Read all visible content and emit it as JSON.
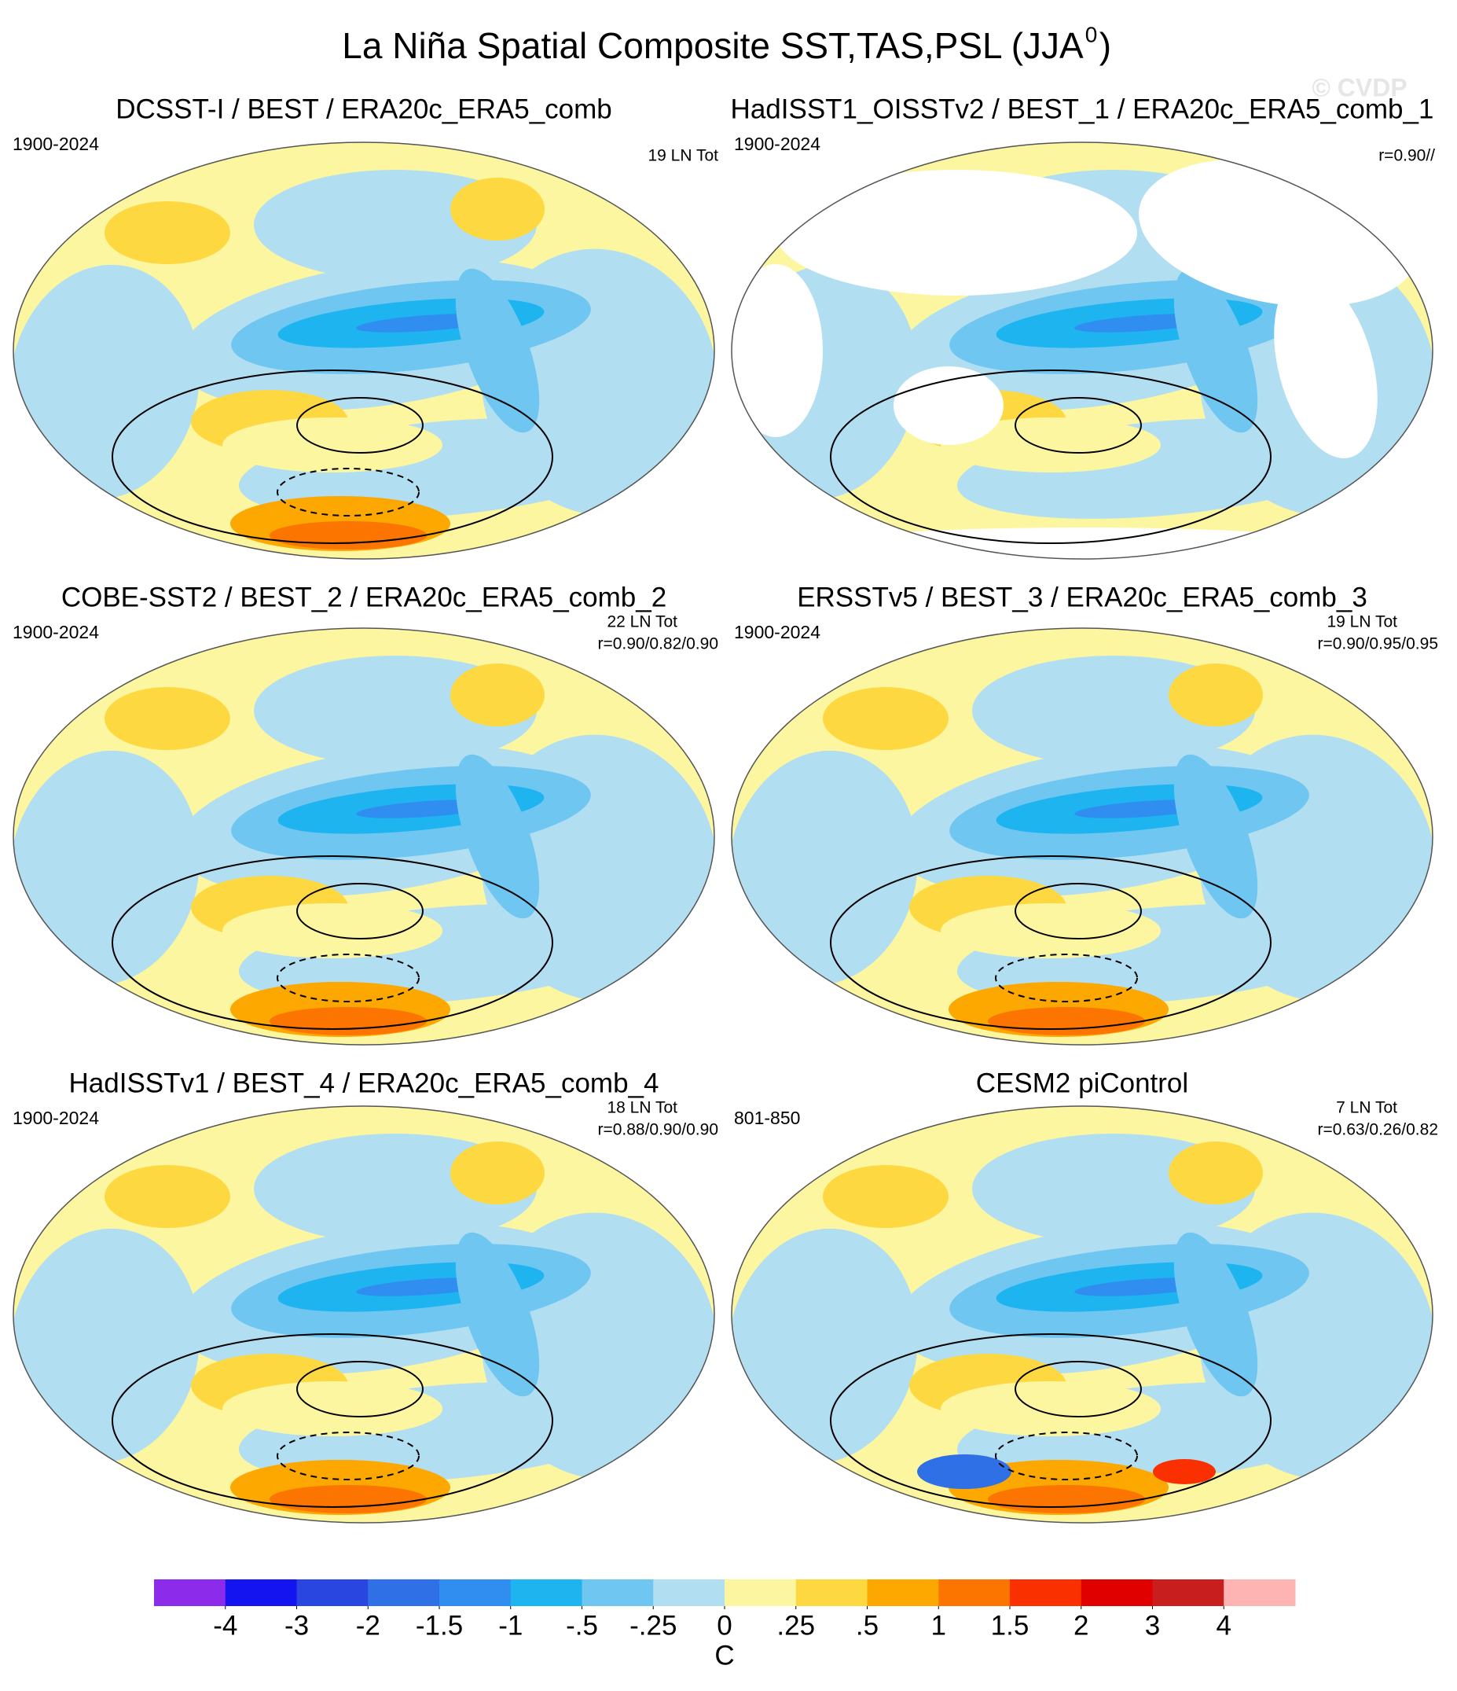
{
  "header": {
    "title": "La Niña Spatial Composite SST,TAS,PSL (JJA",
    "title_superscript": "0",
    "title_close": ")",
    "watermark": "© CVDP"
  },
  "panels": [
    {
      "title": "DCSST-I / BEST / ERA20c_ERA5_comb",
      "period": "1900-2024",
      "count": "19 LN Tot"
    },
    {
      "title": "HadISST1_OISSTv2 / BEST_1 / ERA20c_ERA5_comb_1",
      "period": "1900-2024",
      "corr": "r=0.90//"
    },
    {
      "title": "COBE-SST2 / BEST_2 / ERA20c_ERA5_comb_2",
      "period": "1900-2024",
      "count": "22 LN Tot",
      "corr": "r=0.90/0.82/0.90"
    },
    {
      "title": "ERSSTv5 / BEST_3 / ERA20c_ERA5_comb_3",
      "period": "1900-2024",
      "count": "19 LN Tot",
      "corr": "r=0.90/0.95/0.95"
    },
    {
      "title": "HadISSTv1 / BEST_4 / ERA20c_ERA5_comb_4",
      "period": "1900-2024",
      "count": "18 LN Tot",
      "corr": "r=0.88/0.90/0.90"
    },
    {
      "title": "CESM2 piControl",
      "period": "801-850",
      "count": "7 LN Tot",
      "corr": "r=0.63/0.26/0.82"
    }
  ],
  "colorbar": {
    "unit": "C",
    "ticks": [
      -4,
      -3,
      -2,
      {
        "value": -1.5,
        "label": "-1.5"
      },
      -1,
      {
        "value": -0.5,
        "label": "-.5"
      },
      {
        "value": -0.25,
        "label": "-.25"
      },
      0,
      {
        "value": 0.25,
        "label": ".25"
      },
      {
        "value": 0.5,
        "label": ".5"
      },
      1,
      1.5,
      2,
      3,
      4
    ],
    "colors": [
      "#8c2bea",
      "#1414f0",
      "#2a46e0",
      "#3070e6",
      "#2f8ef0",
      "#1eb4f0",
      "#6fc6f0",
      "#b2def2",
      "#fdf6a0",
      "#fdd840",
      "#fca800",
      "#fb7500",
      "#fa3000",
      "#e00000",
      "#c81e1e",
      "#ffb4b4"
    ]
  }
}
